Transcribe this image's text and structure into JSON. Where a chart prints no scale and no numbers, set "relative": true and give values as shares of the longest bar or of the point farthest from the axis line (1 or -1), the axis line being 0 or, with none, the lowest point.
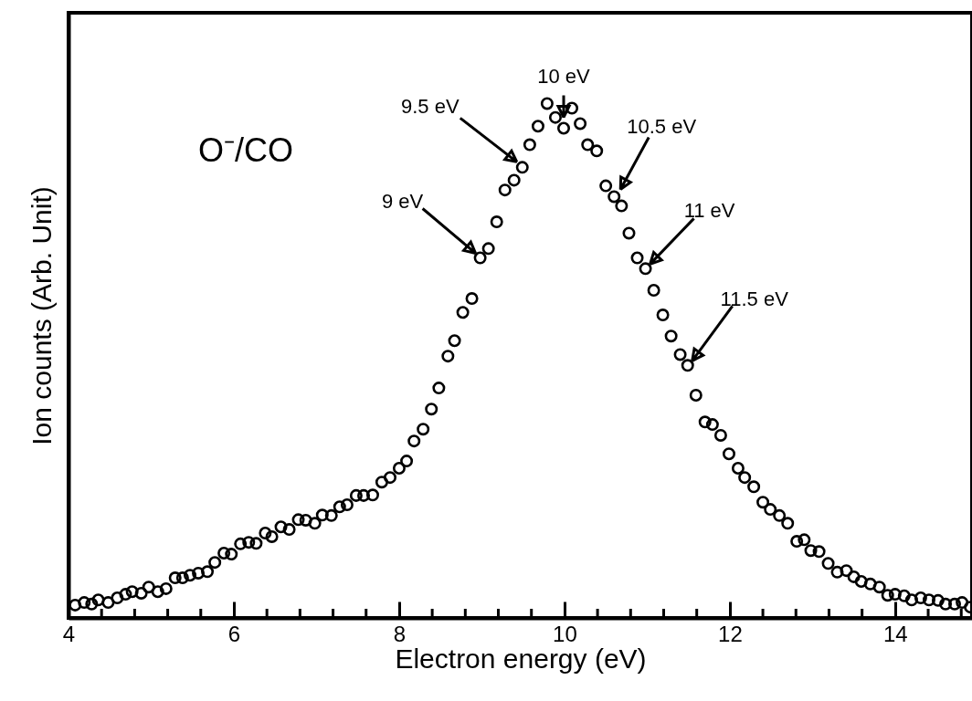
{
  "chart_data": {
    "type": "scatter",
    "xlabel": "Electron energy (eV)",
    "ylabel": "Ion counts (Arb. Unit)",
    "relative": true,
    "marker": "circle",
    "grid": false,
    "xlim": [
      4,
      14.93
    ],
    "xticks": [
      4,
      {
        "value": 4.4,
        "label": null
      },
      {
        "value": 4.8,
        "label": null
      },
      {
        "value": 5.2,
        "label": null
      },
      {
        "value": 5.6,
        "label": null
      },
      6,
      {
        "value": 6.4,
        "label": null
      },
      {
        "value": 6.8,
        "label": null
      },
      {
        "value": 7.2,
        "label": null
      },
      {
        "value": 7.6,
        "label": null
      },
      8,
      {
        "value": 8.4,
        "label": null
      },
      {
        "value": 8.8,
        "label": null
      },
      {
        "value": 9.2,
        "label": null
      },
      {
        "value": 9.6,
        "label": null
      },
      10,
      {
        "value": 10.4,
        "label": null
      },
      {
        "value": 10.8,
        "label": null
      },
      {
        "value": 11.2,
        "label": null
      },
      {
        "value": 11.6,
        "label": null
      },
      12,
      {
        "value": 12.4,
        "label": null
      },
      {
        "value": 12.8,
        "label": null
      },
      {
        "value": 13.2,
        "label": null
      },
      {
        "value": 13.6,
        "label": null
      },
      14,
      {
        "value": 14.4,
        "label": null
      },
      {
        "value": 14.8,
        "label": null
      }
    ],
    "series": [
      {
        "color": "#000000",
        "x": [
          4.08,
          4.19,
          4.28,
          4.36,
          4.48,
          4.59,
          4.69,
          4.77,
          4.88,
          4.97,
          5.08,
          5.18,
          5.29,
          5.38,
          5.47,
          5.57,
          5.68,
          5.77,
          5.88,
          5.97,
          6.08,
          6.18,
          6.27,
          6.38,
          6.46,
          6.57,
          6.67,
          6.78,
          6.87,
          6.98,
          7.07,
          7.18,
          7.28,
          7.37,
          7.48,
          7.57,
          7.68,
          7.79,
          7.89,
          8.0,
          8.09,
          8.18,
          8.29,
          8.39,
          8.48,
          8.59,
          8.67,
          8.77,
          8.88,
          8.98,
          9.08,
          9.18,
          9.28,
          9.39,
          9.49,
          9.58,
          9.68,
          9.79,
          9.89,
          9.99,
          10.09,
          10.19,
          10.28,
          10.39,
          10.5,
          10.6,
          10.69,
          10.78,
          10.88,
          10.98,
          11.08,
          11.19,
          11.29,
          11.4,
          11.49,
          11.59,
          11.7,
          11.79,
          11.89,
          11.99,
          12.1,
          12.18,
          12.29,
          12.4,
          12.49,
          12.6,
          12.7,
          12.81,
          12.9,
          12.98,
          13.08,
          13.19,
          13.3,
          13.41,
          13.5,
          13.59,
          13.7,
          13.81,
          13.91,
          14.0,
          14.11,
          14.2,
          14.31,
          14.41,
          14.52,
          14.61,
          14.72,
          14.81,
          14.91
        ],
        "values": [
          0.025,
          0.03,
          0.027,
          0.035,
          0.03,
          0.039,
          0.046,
          0.051,
          0.048,
          0.06,
          0.051,
          0.057,
          0.078,
          0.078,
          0.083,
          0.087,
          0.09,
          0.108,
          0.126,
          0.124,
          0.144,
          0.147,
          0.145,
          0.165,
          0.158,
          0.177,
          0.172,
          0.191,
          0.19,
          0.184,
          0.2,
          0.199,
          0.216,
          0.22,
          0.238,
          0.238,
          0.239,
          0.264,
          0.273,
          0.291,
          0.305,
          0.344,
          0.367,
          0.406,
          0.447,
          0.509,
          0.539,
          0.594,
          0.621,
          0.7,
          0.718,
          0.77,
          0.832,
          0.851,
          0.876,
          0.92,
          0.956,
          1.0,
          0.973,
          0.952,
          0.991,
          0.961,
          0.92,
          0.908,
          0.84,
          0.819,
          0.801,
          0.748,
          0.7,
          0.679,
          0.637,
          0.589,
          0.548,
          0.512,
          0.491,
          0.433,
          0.381,
          0.376,
          0.355,
          0.319,
          0.291,
          0.273,
          0.255,
          0.225,
          0.211,
          0.199,
          0.184,
          0.149,
          0.152,
          0.131,
          0.129,
          0.106,
          0.089,
          0.092,
          0.08,
          0.071,
          0.066,
          0.06,
          0.044,
          0.046,
          0.043,
          0.035,
          0.039,
          0.035,
          0.034,
          0.027,
          0.027,
          0.03,
          0.021
        ]
      }
    ],
    "annotations": [
      "O⁻/CO",
      {
        "text": "9 eV",
        "x": 8.98,
        "y": 0.7
      },
      {
        "text": "9.5 eV",
        "x": 9.49,
        "y": 0.876
      },
      {
        "text": "10 eV",
        "x": 9.99,
        "y": 0.952
      },
      {
        "text": "10.5 eV",
        "x": 10.6,
        "y": 0.819
      },
      {
        "text": "11 eV",
        "x": 10.98,
        "y": 0.679
      },
      {
        "text": "11.5 eV",
        "x": 11.49,
        "y": 0.491
      }
    ]
  }
}
